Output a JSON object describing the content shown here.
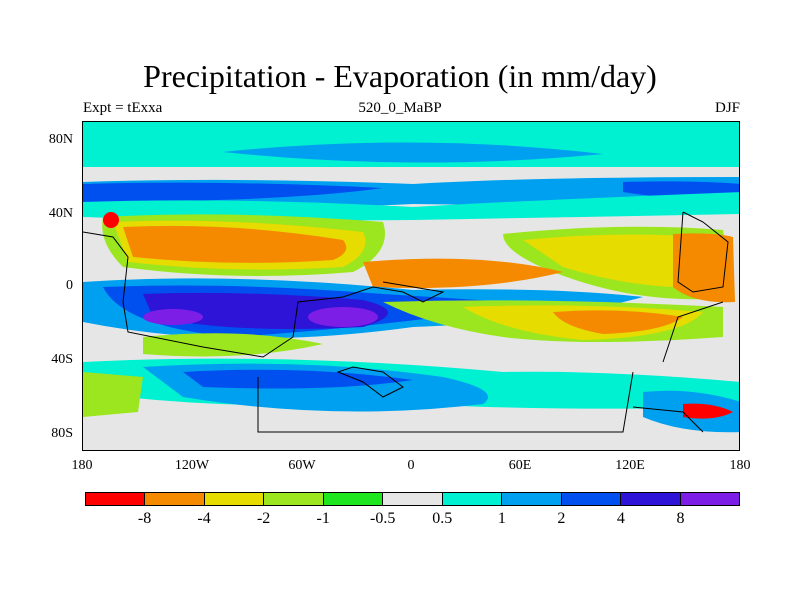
{
  "title": "Precipitation - Evaporation (in mm/day)",
  "subtitle_left": "Expt = tExxa",
  "subtitle_center": "520_0_MaBP",
  "subtitle_right": "DJF",
  "y_ticks": [
    "80N",
    "40N",
    "0",
    "40S",
    "80S"
  ],
  "x_ticks": [
    "180",
    "120W",
    "60W",
    "0",
    "60E",
    "120E",
    "180"
  ],
  "colorbar": {
    "colors": [
      "#ff0000",
      "#f58a00",
      "#e6dc00",
      "#9be61e",
      "#1ee61e",
      "#e6e6e6",
      "#00f0d2",
      "#00a0f0",
      "#0050f0",
      "#2d14d7",
      "#7d1ee6"
    ],
    "labels": [
      "-8",
      "-4",
      "-2",
      "-1",
      "-0.5",
      "0.5",
      "1",
      "2",
      "4",
      "8"
    ]
  }
}
